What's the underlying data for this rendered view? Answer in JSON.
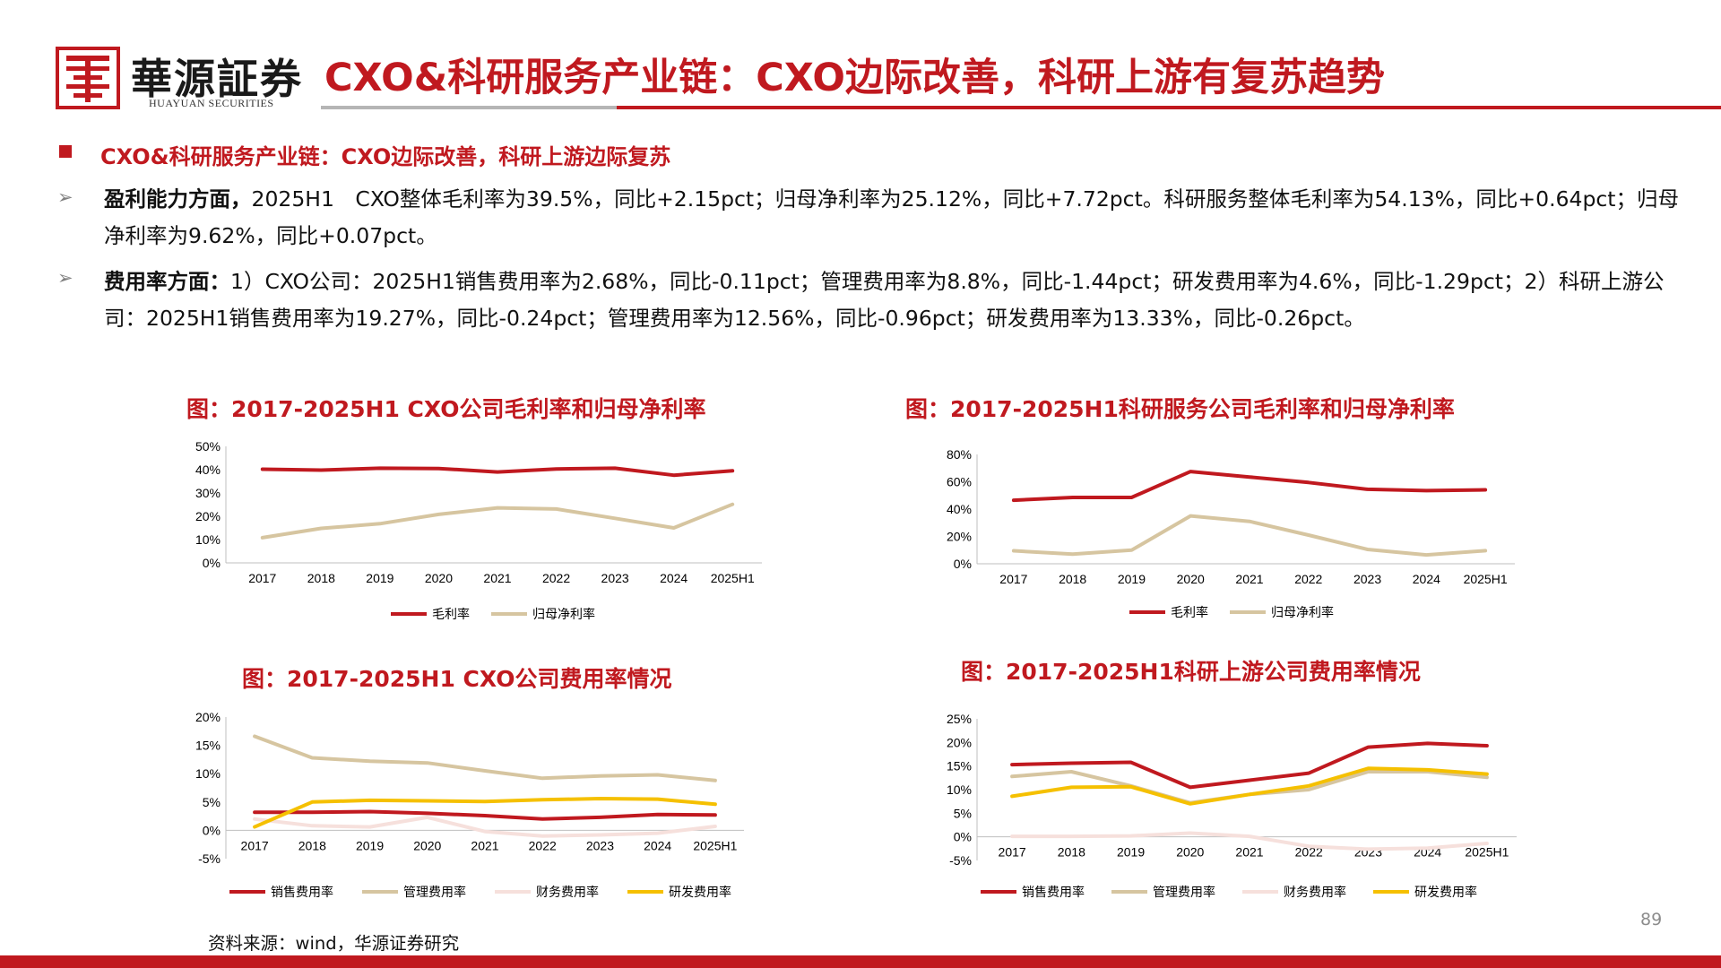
{
  "header": {
    "logo_cn": "華源証券",
    "logo_en": "HUAYUAN SECURITIES",
    "title": "CXO&科研服务产业链：CXO边际改善，科研上游有复苏趋势"
  },
  "section": {
    "heading": "CXO&科研服务产业链：CXO边际改善，科研上游边际复苏"
  },
  "paragraphs": [
    {
      "bold": "盈利能力方面，",
      "text": "2025H1　CXO整体毛利率为39.5%，同比+2.15pct；归母净利率为25.12%，同比+7.72pct。科研服务整体毛利率为54.13%，同比+0.64pct；归母净利率为9.62%，同比+0.07pct。"
    },
    {
      "bold": "费用率方面：",
      "text": "1）CXO公司：2025H1销售费用率为2.68%，同比-0.11pct；管理费用率为8.8%，同比-1.44pct；研发费用率为4.6%，同比-1.29pct；2）科研上游公司：2025H1销售费用率为19.27%，同比-0.24pct；管理费用率为12.56%，同比-0.96pct；研发费用率为13.33%，同比-0.26pct。"
    }
  ],
  "colors": {
    "accent_red": "#c0191f",
    "tan": "#d6c5a0",
    "pink": "#f6e0dc",
    "gold": "#f5c000"
  },
  "chart_data": [
    {
      "type": "line",
      "title": "图：2017-2025H1 CXO公司毛利率和归母净利率",
      "x": [
        "2017",
        "2018",
        "2019",
        "2020",
        "2021",
        "2022",
        "2023",
        "2024",
        "2025H1"
      ],
      "ylim": [
        0,
        50
      ],
      "yticks": [
        "0%",
        "10%",
        "20%",
        "30%",
        "40%",
        "50%"
      ],
      "grid": false,
      "legend": "bottom",
      "series": [
        {
          "name": "毛利率",
          "color": "#c0191f",
          "values": [
            40.2,
            39.8,
            40.6,
            40.5,
            39.0,
            40.3,
            40.6,
            37.6,
            39.5
          ]
        },
        {
          "name": "归母净利率",
          "color": "#d6c5a0",
          "values": [
            10.8,
            14.8,
            16.8,
            20.8,
            23.6,
            23.1,
            19.1,
            15.0,
            25.1
          ]
        }
      ]
    },
    {
      "type": "line",
      "title": "图：2017-2025H1科研服务公司毛利率和归母净利率",
      "x": [
        "2017",
        "2018",
        "2019",
        "2020",
        "2021",
        "2022",
        "2023",
        "2024",
        "2025H1"
      ],
      "ylim": [
        0,
        80
      ],
      "yticks": [
        "0%",
        "20%",
        "40%",
        "60%",
        "80%"
      ],
      "grid": false,
      "legend": "bottom",
      "series": [
        {
          "name": "毛利率",
          "color": "#c0191f",
          "values": [
            46.5,
            48.5,
            48.5,
            67.5,
            63.5,
            59.5,
            54.5,
            53.5,
            54.1
          ]
        },
        {
          "name": "归母净利率",
          "color": "#d6c5a0",
          "values": [
            9.5,
            7.0,
            10.0,
            35.0,
            31.0,
            21.0,
            10.5,
            6.5,
            9.6
          ]
        }
      ]
    },
    {
      "type": "line",
      "title": "图：2017-2025H1 CXO公司费用率情况",
      "x": [
        "2017",
        "2018",
        "2019",
        "2020",
        "2021",
        "2022",
        "2023",
        "2024",
        "2025H1"
      ],
      "ylim": [
        -5,
        20
      ],
      "yticks": [
        "-5%",
        "0%",
        "5%",
        "10%",
        "15%",
        "20%"
      ],
      "grid": false,
      "legend": "bottom",
      "series": [
        {
          "name": "销售费用率",
          "color": "#c0191f",
          "values": [
            3.2,
            3.2,
            3.3,
            3.0,
            2.6,
            2.0,
            2.3,
            2.8,
            2.7
          ]
        },
        {
          "name": "管理费用率",
          "color": "#d6c5a0",
          "values": [
            16.6,
            12.8,
            12.2,
            11.9,
            10.5,
            9.2,
            9.6,
            9.8,
            8.8
          ]
        },
        {
          "name": "财务费用率",
          "color": "#f6e0dc",
          "values": [
            2.0,
            0.8,
            0.6,
            2.3,
            -0.2,
            -1.0,
            -0.8,
            -0.5,
            0.7
          ]
        },
        {
          "name": "研发费用率",
          "color": "#f5c000",
          "values": [
            0.6,
            5.0,
            5.3,
            5.2,
            5.1,
            5.4,
            5.6,
            5.5,
            4.6
          ]
        }
      ]
    },
    {
      "type": "line",
      "title": "图：2017-2025H1科研上游公司费用率情况",
      "x": [
        "2017",
        "2018",
        "2019",
        "2020",
        "2021",
        "2022",
        "2023",
        "2024",
        "2025H1"
      ],
      "ylim": [
        -5,
        25
      ],
      "yticks": [
        "-5%",
        "0%",
        "5%",
        "10%",
        "15%",
        "20%",
        "25%"
      ],
      "grid": false,
      "legend": "bottom",
      "series": [
        {
          "name": "销售费用率",
          "color": "#c0191f",
          "values": [
            15.3,
            15.6,
            15.8,
            10.5,
            12.0,
            13.5,
            19.0,
            19.8,
            19.3
          ]
        },
        {
          "name": "管理费用率",
          "color": "#d6c5a0",
          "values": [
            12.8,
            13.8,
            10.8,
            7.2,
            9.0,
            10.0,
            13.8,
            13.8,
            12.6
          ]
        },
        {
          "name": "财务费用率",
          "color": "#f6e0dc",
          "values": [
            0.1,
            0.1,
            0.2,
            0.8,
            0.1,
            -2.0,
            -2.6,
            -2.4,
            -1.4
          ]
        },
        {
          "name": "研发费用率",
          "color": "#f5c000",
          "values": [
            8.6,
            10.5,
            10.6,
            7.0,
            9.0,
            10.8,
            14.5,
            14.2,
            13.3
          ]
        }
      ]
    }
  ],
  "footer": {
    "source": "资料来源：wind，华源证券研究",
    "page_number": "89"
  }
}
